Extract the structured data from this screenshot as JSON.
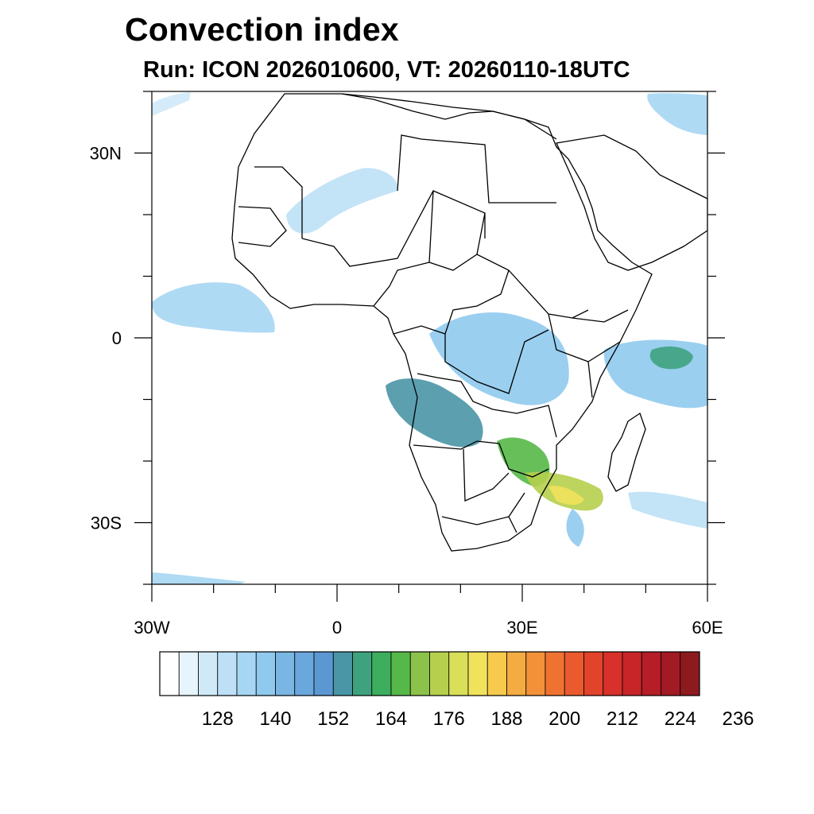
{
  "title": "Convection index",
  "subtitle": "Run: ICON 2026010600,  VT: 20260110-18UTC",
  "map": {
    "projection": "cylindrical-equidistant",
    "lon_range": [
      -30,
      60
    ],
    "lat_range": [
      -40,
      40
    ],
    "lat_labels": [
      {
        "lat": 30,
        "text": "30N"
      },
      {
        "lat": 0,
        "text": "0"
      },
      {
        "lat": -30,
        "text": "30S"
      }
    ],
    "lon_labels": [
      {
        "lon": -30,
        "text": "30W"
      },
      {
        "lon": 0,
        "text": "0"
      },
      {
        "lon": 30,
        "text": "30E"
      },
      {
        "lon": 60,
        "text": "60E"
      }
    ],
    "minor_ticks_deg": 10
  },
  "colorbar": {
    "colors": [
      "#ffffff",
      "#e8f4fc",
      "#d0e9f8",
      "#bde0f6",
      "#a6d6f3",
      "#8fcaee",
      "#7ab6e4",
      "#6aa7dc",
      "#5b98d2",
      "#4a95a6",
      "#3fa27e",
      "#3dad5e",
      "#56b848",
      "#8bc34a",
      "#b6cf4c",
      "#dadf5a",
      "#f1e25c",
      "#f7ca4e",
      "#f4ac42",
      "#f29138",
      "#ef7330",
      "#ea5a2e",
      "#e2432b",
      "#d8302a",
      "#c72528",
      "#b51d27",
      "#a11a24",
      "#8c1a1e"
    ],
    "labels": [
      "128",
      "140",
      "152",
      "164",
      "176",
      "188",
      "200",
      "212",
      "224",
      "236"
    ]
  },
  "fields": [
    {
      "color_index": 2,
      "region": "north-atlantic-west"
    },
    {
      "color_index": 3,
      "region": "sahara-band"
    },
    {
      "color_index": 4,
      "region": "gulf-of-guinea-west"
    },
    {
      "color_index": 5,
      "region": "central-africa"
    },
    {
      "color_index": 9,
      "region": "angola-zambia"
    },
    {
      "color_index": 12,
      "region": "zimbabwe"
    },
    {
      "color_index": 14,
      "region": "mozambique-south"
    },
    {
      "color_index": 16,
      "region": "natal"
    },
    {
      "color_index": 5,
      "region": "indian-ocean-east"
    },
    {
      "color_index": 10,
      "region": "indian-ocean-patch"
    },
    {
      "color_index": 4,
      "region": "arabian-sea-north"
    },
    {
      "color_index": 3,
      "region": "south-indian-ocean"
    }
  ]
}
